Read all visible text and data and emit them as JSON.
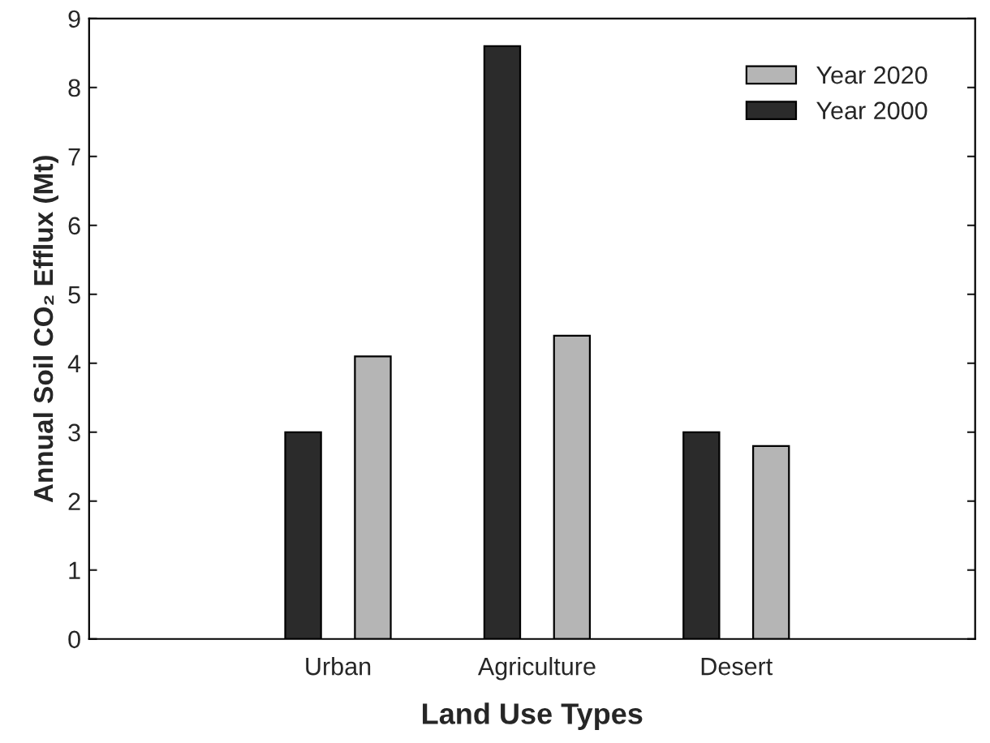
{
  "chart_data": {
    "type": "bar",
    "xlabel": "Land Use Types",
    "ylabel": "Annual Soil CO₂ Efflux (Mt)",
    "categories": [
      "Urban",
      "Agriculture",
      "Desert"
    ],
    "series": [
      {
        "name": "Year 2000",
        "color": "#2b2b2b",
        "values": [
          3.0,
          8.6,
          3.0
        ]
      },
      {
        "name": "Year 2020",
        "color": "#b5b5b5",
        "values": [
          4.1,
          4.4,
          2.8
        ]
      }
    ],
    "ylim": [
      0,
      9
    ],
    "yticks": [
      0,
      1,
      2,
      3,
      4,
      5,
      6,
      7,
      8,
      9
    ],
    "grid": false,
    "legend": "top right"
  }
}
